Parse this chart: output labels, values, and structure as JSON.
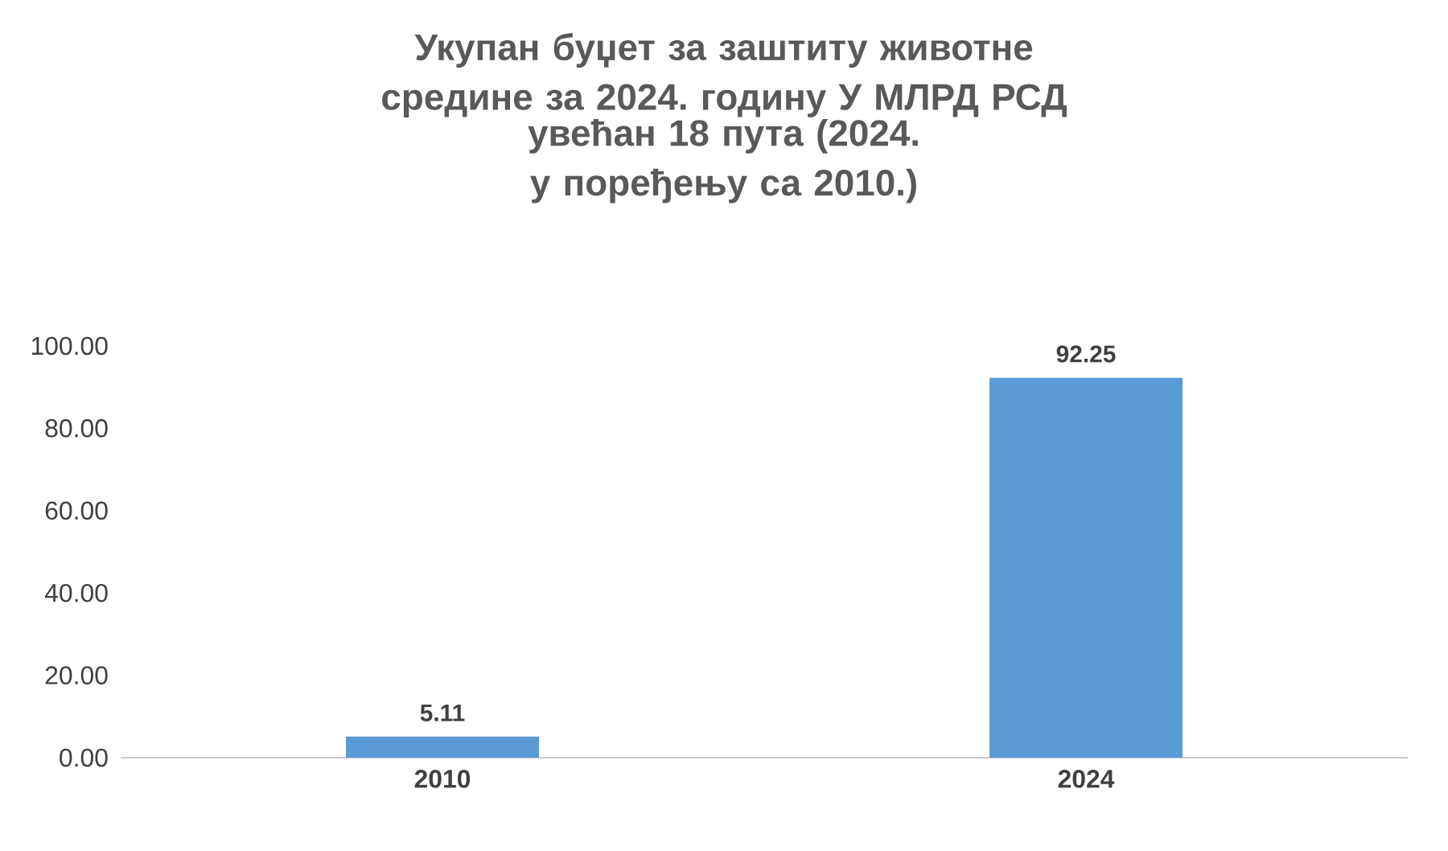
{
  "chart_data": {
    "type": "bar",
    "title": "Укупан буџет за заштиту животне средине за 2024. годину У МЛРД РСД",
    "subtitle": "увећан 18 пута (2024. у поређењу са 2010.)",
    "categories": [
      "2010",
      "2024"
    ],
    "values": [
      5.11,
      92.25
    ],
    "value_labels": [
      "5.11",
      "92.25"
    ],
    "color": "#5b9bd5",
    "ylim": [
      0,
      100
    ],
    "yticks": [
      {
        "value": 0,
        "label": "0.00"
      },
      {
        "value": 20,
        "label": "20.00"
      },
      {
        "value": 40,
        "label": "40.00"
      },
      {
        "value": 60,
        "label": "60.00"
      },
      {
        "value": 80,
        "label": "80.00"
      },
      {
        "value": 100,
        "label": "100.00"
      }
    ],
    "grid": false
  }
}
